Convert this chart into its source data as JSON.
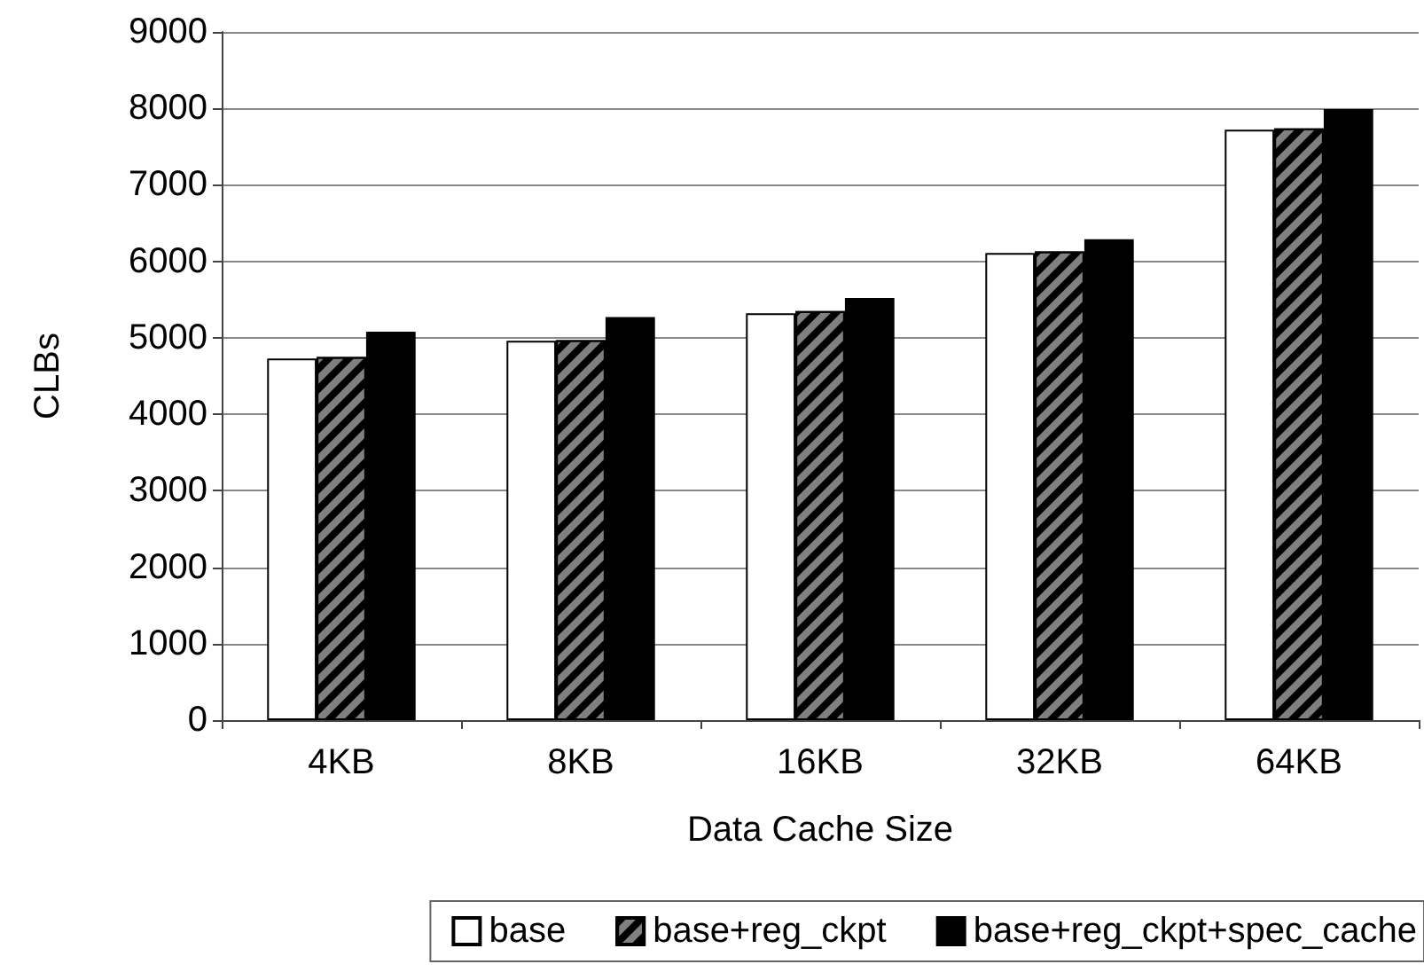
{
  "chart_data": {
    "type": "bar",
    "xlabel": "Data Cache Size",
    "ylabel": "CLBs",
    "categories": [
      "4KB",
      "8KB",
      "16KB",
      "32KB",
      "64KB"
    ],
    "series": [
      {
        "name": "base",
        "color": "#ffffff",
        "values": [
          4730,
          4960,
          5320,
          6110,
          7720
        ]
      },
      {
        "name": "base+reg_ckpt",
        "color": "#808080",
        "values": [
          4750,
          4970,
          5350,
          6130,
          7740
        ]
      },
      {
        "name": "base+reg_ckpt+spec_cache",
        "color": "#000000",
        "values": [
          5080,
          5270,
          5520,
          6290,
          7990
        ]
      }
    ],
    "ylim": [
      0,
      9000
    ],
    "yticks": [
      0,
      1000,
      2000,
      3000,
      4000,
      5000,
      6000,
      7000,
      8000,
      9000
    ],
    "grid": "y",
    "legend": "bottom"
  }
}
